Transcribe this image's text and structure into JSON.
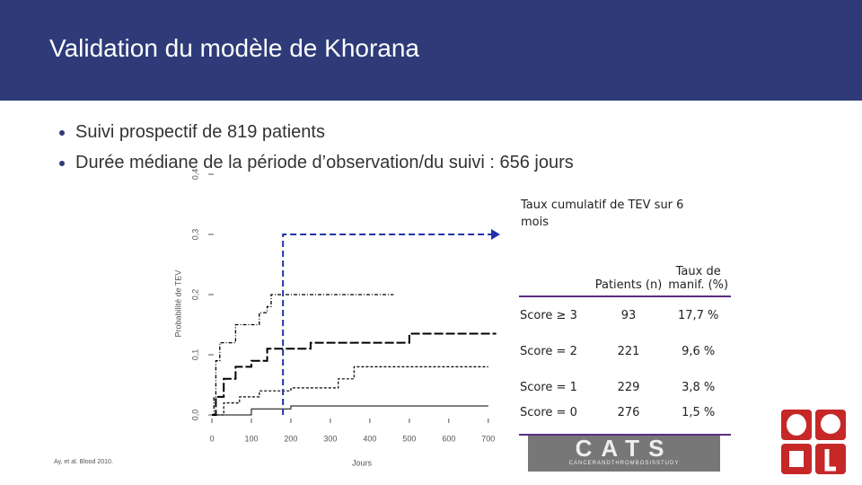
{
  "header": {
    "title": "Validation du modèle de Khorana"
  },
  "bullets": [
    "Suivi prospectif de 819 patients",
    "Durée médiane de la période d’observation/du suivi : 656 jours"
  ],
  "chart_data": {
    "type": "line",
    "ylabel": "Probabilité de TEV",
    "xlabel": "Jours",
    "xlim": [
      0,
      730
    ],
    "ylim": [
      0,
      0.4
    ],
    "xticks": [
      0,
      100,
      200,
      300,
      400,
      500,
      600,
      700
    ],
    "yticks": [
      {
        "value": 0,
        "label": "0,0"
      },
      {
        "value": 0.1,
        "label": "0,1"
      },
      {
        "value": 0.2,
        "label": "0,2"
      },
      {
        "value": 0.3,
        "label": "0,3"
      },
      {
        "value": 0.4,
        "label": "0,4"
      }
    ],
    "series": [
      {
        "color": "#000000",
        "dash": "4 2 1 2",
        "width": 1.3,
        "x": [
          0,
          5,
          10,
          20,
          60,
          120,
          140,
          150,
          327,
          460
        ],
        "values": [
          0,
          0.03,
          0.09,
          0.12,
          0.15,
          0.17,
          0.18,
          0.2,
          0.2,
          0.2
        ]
      },
      {
        "color": "#000000",
        "dash": "10 3",
        "width": 2,
        "x": [
          0,
          10,
          30,
          60,
          100,
          140,
          250,
          500,
          720
        ],
        "values": [
          0,
          0.03,
          0.06,
          0.08,
          0.09,
          0.11,
          0.12,
          0.135,
          0.135
        ]
      },
      {
        "color": "#000000",
        "dash": "3 2",
        "width": 1.2,
        "x": [
          0,
          30,
          70,
          120,
          200,
          320,
          360,
          700
        ],
        "values": [
          0,
          0.02,
          0.03,
          0.04,
          0.045,
          0.06,
          0.08,
          0.08
        ]
      },
      {
        "color": "#000000",
        "dash": "none",
        "width": 1,
        "x": [
          0,
          100,
          200,
          700
        ],
        "values": [
          0,
          0.01,
          0.015,
          0.015
        ]
      }
    ],
    "reference": {
      "x": 180,
      "y": 0.3,
      "color": "#2233aa"
    },
    "annotation": "Taux cumulatif de TEV sur 6 mois"
  },
  "table": {
    "header": [
      "Patients (n)",
      "Taux de manif. (%)"
    ],
    "rows": [
      [
        "Score ≥ 3",
        "93",
        "17,7 %"
      ],
      [
        "Score = 2",
        "221",
        "9,6 %"
      ],
      [
        "Score = 1",
        "229",
        "3,8 %"
      ],
      [
        "Score = 0",
        "276",
        "1,5 %"
      ]
    ]
  },
  "citation": "Ay, et al. Blood 2010.",
  "logo": {
    "name": "CATS",
    "subtitle": "CANCERANDTHROMBOSISSTUDY"
  }
}
